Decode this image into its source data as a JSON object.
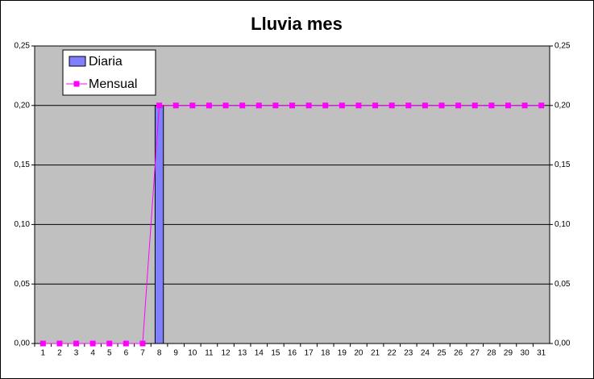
{
  "chart_data": {
    "type": "bar",
    "title": "Lluvia mes",
    "categories": [
      1,
      2,
      3,
      4,
      5,
      6,
      7,
      8,
      9,
      10,
      11,
      12,
      13,
      14,
      15,
      16,
      17,
      18,
      19,
      20,
      21,
      22,
      23,
      24,
      25,
      26,
      27,
      28,
      29,
      30,
      31
    ],
    "series": [
      {
        "name": "Diaria",
        "type": "bar",
        "color": "#8080ff",
        "values": [
          0,
          0,
          0,
          0,
          0,
          0,
          0,
          0.2,
          0,
          0,
          0,
          0,
          0,
          0,
          0,
          0,
          0,
          0,
          0,
          0,
          0,
          0,
          0,
          0,
          0,
          0,
          0,
          0,
          0,
          0,
          0
        ]
      },
      {
        "name": "Mensual",
        "type": "line",
        "color": "#ff00ff",
        "axis": "y2",
        "values": [
          0,
          0,
          0,
          0,
          0,
          0,
          0,
          0.2,
          0.2,
          0.2,
          0.2,
          0.2,
          0.2,
          0.2,
          0.2,
          0.2,
          0.2,
          0.2,
          0.2,
          0.2,
          0.2,
          0.2,
          0.2,
          0.2,
          0.2,
          0.2,
          0.2,
          0.2,
          0.2,
          0.2,
          0.2
        ]
      }
    ],
    "ylim": [
      0,
      0.25
    ],
    "yticks": [
      {
        "value": 0,
        "label": "0,00"
      },
      {
        "value": 0.05,
        "label": "0,05"
      },
      {
        "value": 0.1,
        "label": "0,10"
      },
      {
        "value": 0.15,
        "label": "0,15"
      },
      {
        "value": 0.2,
        "label": "0,20"
      },
      {
        "value": 0.25,
        "label": "0,25"
      }
    ],
    "y2lim": [
      0,
      0.25
    ],
    "y2ticks": [
      {
        "value": 0,
        "label": "0,00"
      },
      {
        "value": 0.05,
        "label": "0,05"
      },
      {
        "value": 0.1,
        "label": "0,10"
      },
      {
        "value": 0.15,
        "label": "0,15"
      },
      {
        "value": 0.2,
        "label": "0,20"
      },
      {
        "value": 0.25,
        "label": "0,25"
      }
    ],
    "grid": true,
    "legend": "top-left"
  }
}
